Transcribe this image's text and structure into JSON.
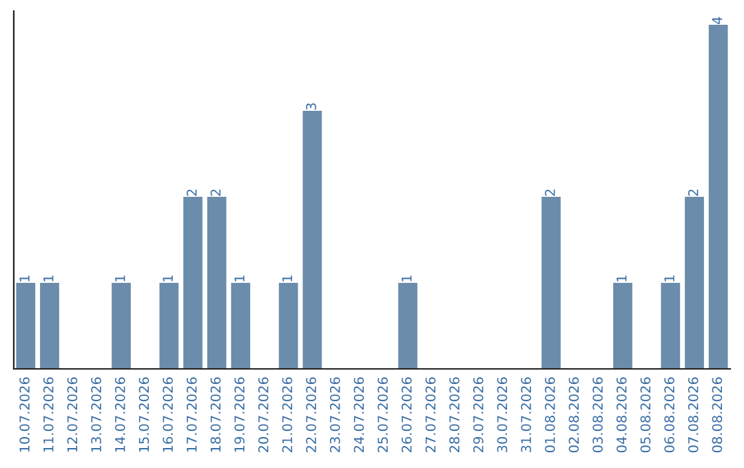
{
  "chart_data": {
    "type": "bar",
    "categories": [
      "10.07.2026",
      "11.07.2026",
      "12.07.2026",
      "13.07.2026",
      "14.07.2026",
      "15.07.2026",
      "16.07.2026",
      "17.07.2026",
      "18.07.2026",
      "19.07.2026",
      "20.07.2026",
      "21.07.2026",
      "22.07.2026",
      "23.07.2026",
      "24.07.2026",
      "25.07.2026",
      "26.07.2026",
      "27.07.2026",
      "28.07.2026",
      "29.07.2026",
      "30.07.2026",
      "31.07.2026",
      "01.08.2026",
      "02.08.2026",
      "03.08.2026",
      "04.08.2026",
      "05.08.2026",
      "06.08.2026",
      "07.08.2026",
      "08.08.2026"
    ],
    "values": [
      1,
      1,
      0,
      0,
      1,
      0,
      1,
      2,
      2,
      1,
      0,
      1,
      3,
      0,
      0,
      0,
      1,
      0,
      0,
      0,
      0,
      0,
      2,
      0,
      0,
      1,
      0,
      1,
      2,
      4
    ],
    "value_labels": [
      "1",
      "1",
      null,
      null,
      "1",
      null,
      "1",
      "2",
      "2",
      "1",
      null,
      "1",
      "3",
      null,
      null,
      null,
      "1",
      null,
      null,
      null,
      null,
      null,
      "2",
      null,
      null,
      "1",
      null,
      "1",
      "2",
      "4"
    ],
    "color": "#6b8cab",
    "tick_labels": "x",
    "grid": false,
    "legend": false
  }
}
